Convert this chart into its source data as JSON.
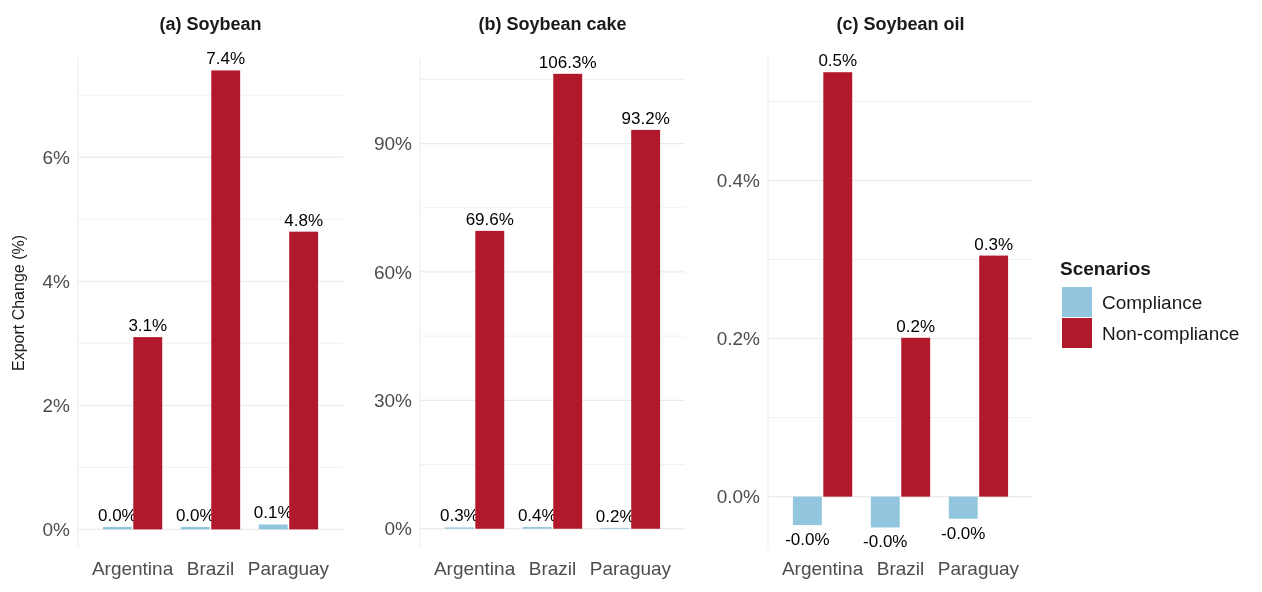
{
  "chart_data": [
    {
      "type": "bar",
      "title": "(a) Soybean",
      "ylabel": "Export Change (%)",
      "categories": [
        "Argentina",
        "Brazil",
        "Paraguay"
      ],
      "series": [
        {
          "color": "#92c5de",
          "values": [
            0.04,
            0.04,
            0.08
          ],
          "value_labels": [
            "0.0%",
            "0.0%",
            "0.1%"
          ]
        },
        {
          "color": "#b2182b",
          "values": [
            3.1,
            7.4,
            4.8
          ],
          "value_labels": [
            "3.1%",
            "7.4%",
            "4.8%"
          ]
        }
      ],
      "ylim": [
        -0.3,
        7.6
      ],
      "yticks": [
        {
          "value": 0,
          "label": "0%"
        },
        {
          "value": 1,
          "label": null
        },
        {
          "value": 2,
          "label": "2%"
        },
        {
          "value": 3,
          "label": null
        },
        {
          "value": 4,
          "label": "4%"
        },
        {
          "value": 5,
          "label": null
        },
        {
          "value": 6,
          "label": "6%"
        },
        {
          "value": 7,
          "label": null
        }
      ],
      "grid": "y",
      "legend": false
    },
    {
      "type": "bar",
      "title": "(b) Soybean cake",
      "categories": [
        "Argentina",
        "Brazil",
        "Paraguay"
      ],
      "series": [
        {
          "color": "#92c5de",
          "values": [
            0.3,
            0.4,
            0.2
          ],
          "value_labels": [
            "0.3%",
            "0.4%",
            "0.2%"
          ]
        },
        {
          "color": "#b2182b",
          "values": [
            69.6,
            106.3,
            93.2
          ],
          "value_labels": [
            "69.6%",
            "106.3%",
            "93.2%"
          ]
        }
      ],
      "ylim": [
        -4.5,
        110
      ],
      "yticks": [
        {
          "value": 0,
          "label": "0%"
        },
        {
          "value": 15,
          "label": null
        },
        {
          "value": 30,
          "label": "30%"
        },
        {
          "value": 45,
          "label": null
        },
        {
          "value": 60,
          "label": "60%"
        },
        {
          "value": 75,
          "label": null
        },
        {
          "value": 90,
          "label": "90%"
        },
        {
          "value": 105,
          "label": null
        }
      ],
      "grid": "y",
      "legend": false
    },
    {
      "type": "bar",
      "title": "(c) Soybean oil",
      "categories": [
        "Argentina",
        "Brazil",
        "Paraguay"
      ],
      "series": [
        {
          "name": "Compliance",
          "color": "#92c5de",
          "values": [
            -0.036,
            -0.039,
            -0.028
          ],
          "value_labels": [
            "-0.0%",
            "-0.0%",
            "-0.0%"
          ]
        },
        {
          "name": "Non-compliance",
          "color": "#b2182b",
          "values": [
            0.537,
            0.201,
            0.305
          ],
          "value_labels": [
            "0.5%",
            "0.2%",
            "0.3%"
          ]
        }
      ],
      "ylim": [
        -0.065,
        0.555
      ],
      "yticks": [
        {
          "value": 0,
          "label": "0.0%"
        },
        {
          "value": 0.1,
          "label": null
        },
        {
          "value": 0.2,
          "label": "0.2%"
        },
        {
          "value": 0.3,
          "label": null
        },
        {
          "value": 0.4,
          "label": "0.4%"
        },
        {
          "value": 0.5,
          "label": null
        }
      ],
      "grid": "y",
      "legend": "right",
      "legend_title": "Scenarios"
    }
  ]
}
